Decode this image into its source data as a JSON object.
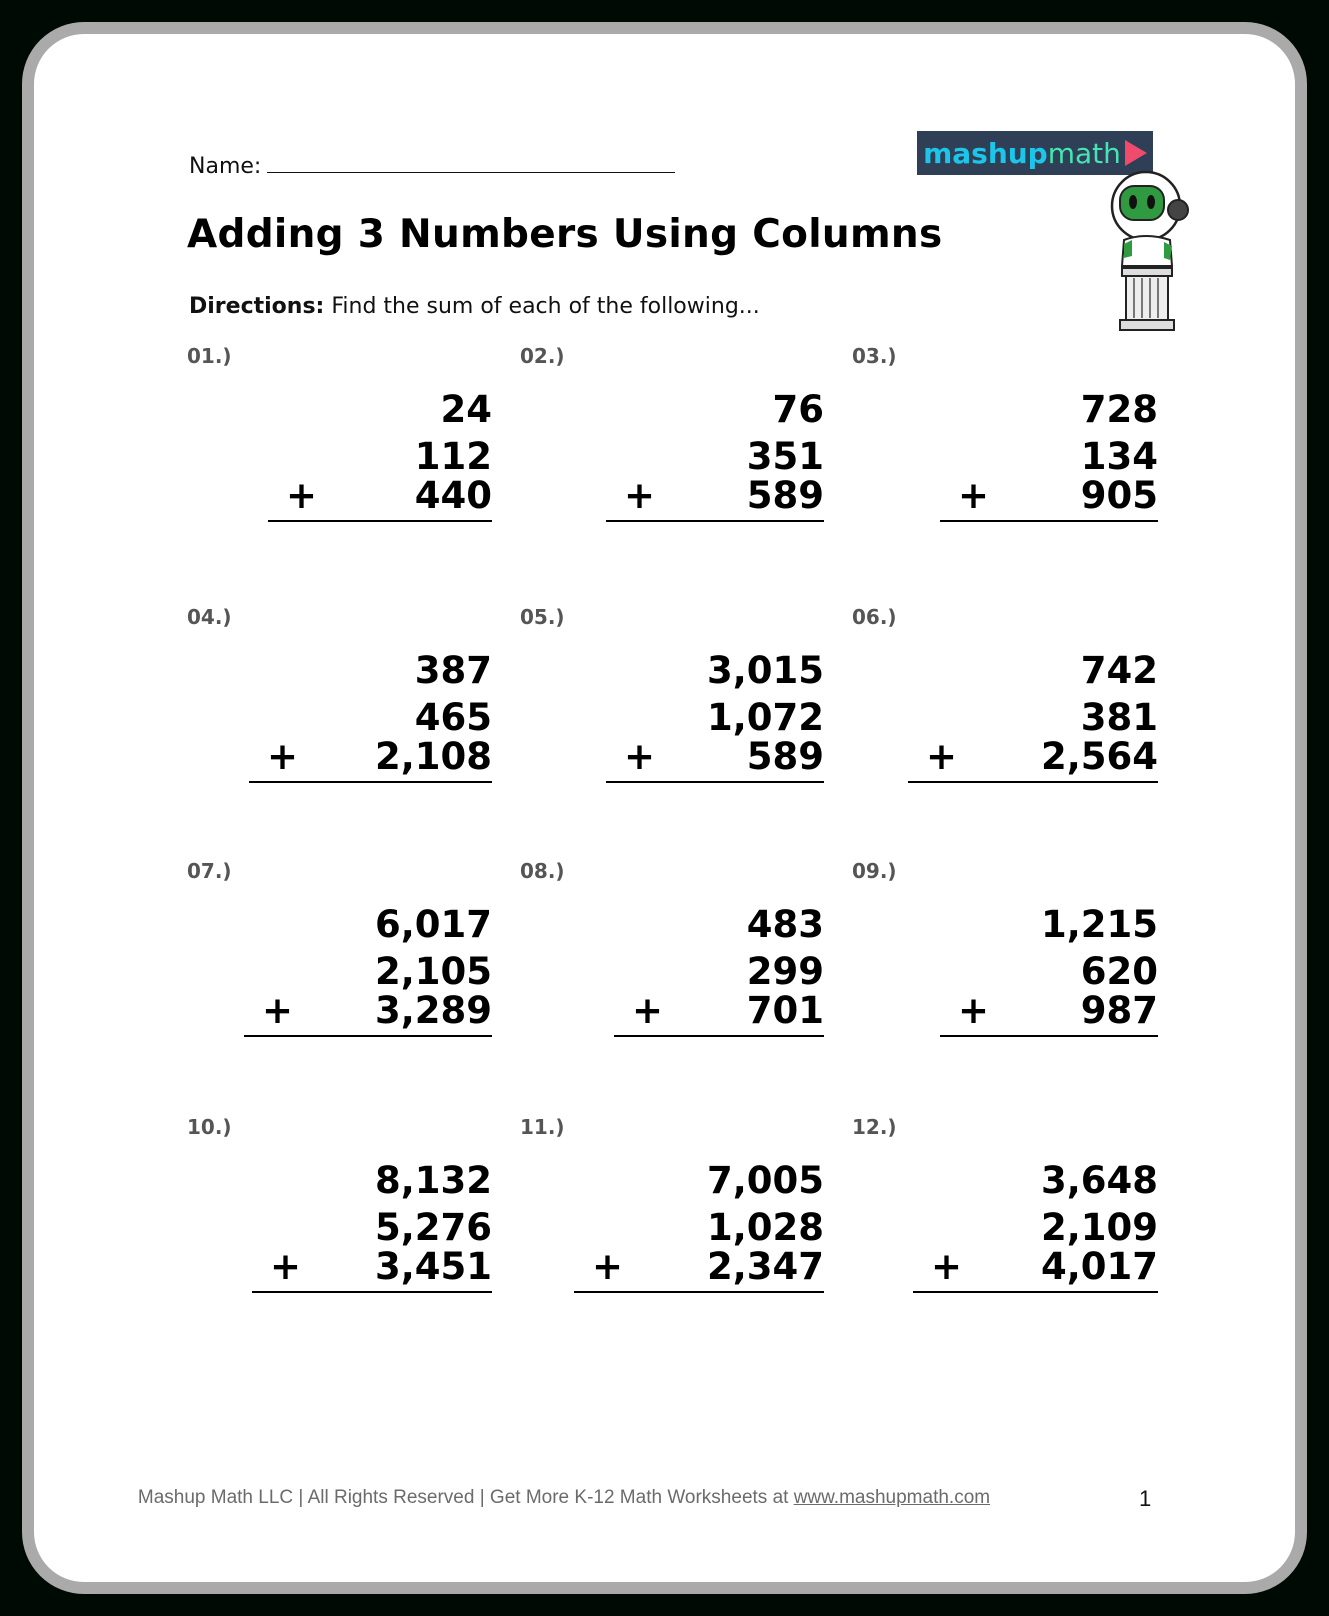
{
  "header": {
    "name_label": "Name:",
    "title": "Adding 3 Numbers Using Columns",
    "directions_label": "Directions:",
    "directions_text": "Find the sum of each of the following..."
  },
  "logo": {
    "part1": "mashup",
    "part2": "math",
    "colors": {
      "bg": "#2f3f55",
      "mashup": "#1cc6ea",
      "math": "#43e5b5",
      "play": "#f04a6c"
    }
  },
  "problems": [
    {
      "label": "01.)",
      "a": "24",
      "b": "112",
      "c": "440",
      "plus": "+"
    },
    {
      "label": "02.)",
      "a": "76",
      "b": "351",
      "c": "589",
      "plus": "+"
    },
    {
      "label": "03.)",
      "a": "728",
      "b": "134",
      "c": "905",
      "plus": "+"
    },
    {
      "label": "04.)",
      "a": "387",
      "b": "465",
      "c": "2,108",
      "plus": "+"
    },
    {
      "label": "05.)",
      "a": "3,015",
      "b": "1,072",
      "c": "589",
      "plus": "+"
    },
    {
      "label": "06.)",
      "a": "742",
      "b": "381",
      "c": "2,564",
      "plus": "+"
    },
    {
      "label": "07.)",
      "a": "6,017",
      "b": "2,105",
      "c": "3,289",
      "plus": "+"
    },
    {
      "label": "08.)",
      "a": "483",
      "b": "299",
      "c": "701",
      "plus": "+"
    },
    {
      "label": "09.)",
      "a": "1,215",
      "b": "620",
      "c": "987",
      "plus": "+"
    },
    {
      "label": "10.)",
      "a": "8,132",
      "b": "5,276",
      "c": "3,451",
      "plus": "+"
    },
    {
      "label": "11.)",
      "a": "7,005",
      "b": "1,028",
      "c": "2,347",
      "plus": "+"
    },
    {
      "label": "12.)",
      "a": "3,648",
      "b": "2,109",
      "c": "4,017",
      "plus": "+"
    }
  ],
  "footer": {
    "text": "Mashup Math LLC | All Rights Reserved | Get More K-12 Math Worksheets at ",
    "link": "www.mashupmath.com",
    "page_number": "1"
  }
}
